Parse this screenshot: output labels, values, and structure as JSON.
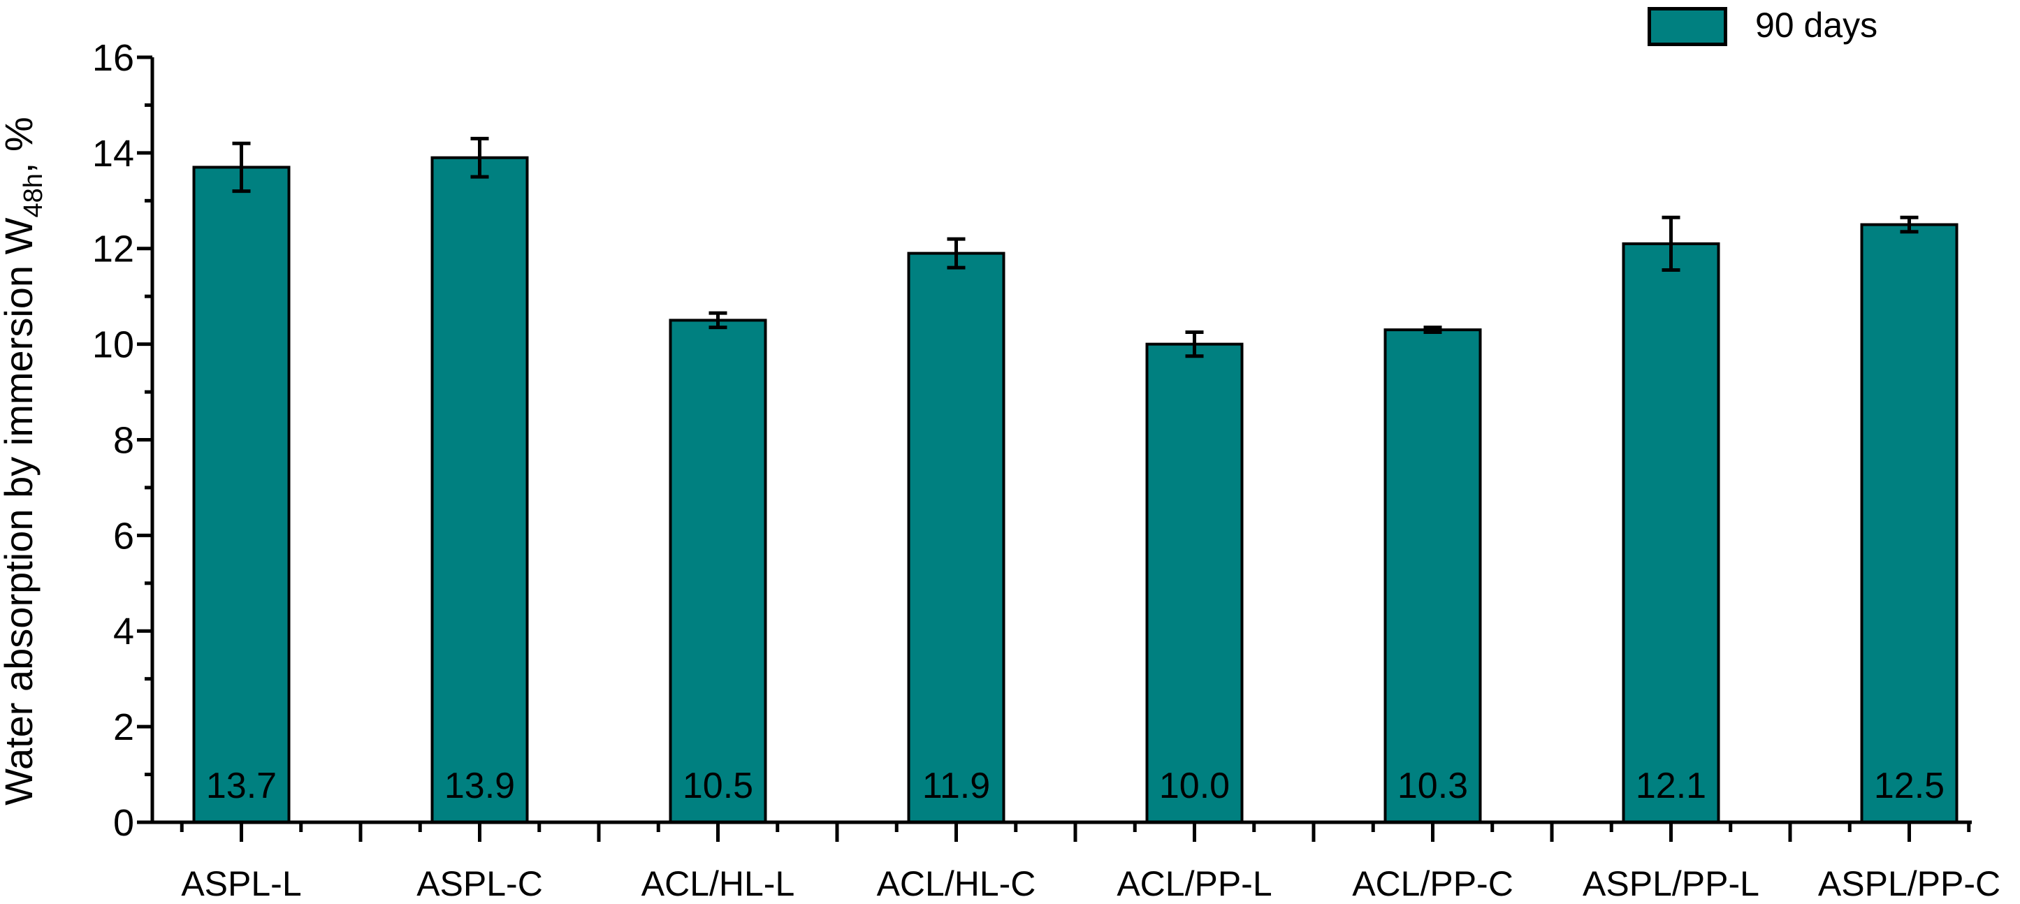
{
  "chart_data": {
    "type": "bar",
    "title": "",
    "categories": [
      "ASPL-L",
      "ASPL-C",
      "ACL/HL-L",
      "ACL/HL-C",
      "ACL/PP-L",
      "ACL/PP-C",
      "ASPL/PP-L",
      "ASPL/PP-C"
    ],
    "values": [
      13.7,
      13.9,
      10.5,
      11.9,
      10.0,
      10.3,
      12.1,
      12.5
    ],
    "value_labels": [
      "13.7",
      "13.9",
      "10.5",
      "11.9",
      "10.0",
      "10.3",
      "12.1",
      "12.5"
    ],
    "errors": [
      0.5,
      0.4,
      0.15,
      0.3,
      0.25,
      0.05,
      0.55,
      0.15
    ],
    "series_name": "90 days",
    "xlabel": "",
    "ylabel_main": "Water absorption by immersion W",
    "ylabel_sub": "48h",
    "ylabel_suffix": ", %",
    "ylim": [
      0,
      16
    ],
    "y_major_step": 2,
    "y_minor_step": 1,
    "y_tick_labels": [
      "0",
      "2",
      "4",
      "6",
      "8",
      "10",
      "12",
      "14",
      "16"
    ],
    "grid": "off",
    "legend": {
      "position": "top-right",
      "label": "90 days"
    },
    "colors": {
      "bar_fill": "#008080",
      "bar_border": "#000000",
      "axis": "#000000",
      "error_bar": "#000000",
      "text": "#000000",
      "background": "#ffffff"
    }
  }
}
